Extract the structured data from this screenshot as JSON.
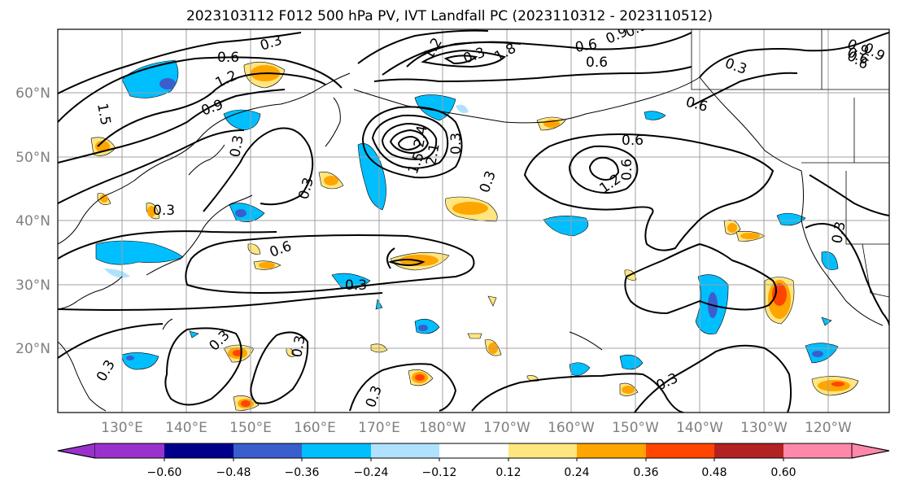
{
  "title": "2023103112 F012 500 hPa PV, IVT Landfall PC (2023110312 - 2023110512)",
  "x_ticks": [
    "130°E",
    "140°E",
    "150°E",
    "160°E",
    "170°E",
    "180°W",
    "170°W",
    "160°W",
    "150°W",
    "140°W",
    "130°W",
    "120°W"
  ],
  "y_ticks": [
    "60°N",
    "50°N",
    "40°N",
    "30°N",
    "20°N"
  ],
  "colorbar": {
    "tick_labels": [
      "−0.60",
      "−0.48",
      "−0.36",
      "−0.24",
      "−0.12",
      "0.12",
      "0.24",
      "0.36",
      "0.48",
      "0.60"
    ],
    "colors": [
      "#9932cc",
      "#00008b",
      "#3a5fcd",
      "#00bfff",
      "#b0e2ff",
      "#ffffff",
      "#ffe680",
      "#ffa500",
      "#ff4500",
      "#b22222",
      "#ff88aa"
    ]
  },
  "contour_labels": [
    "0.3",
    "0.6",
    "1.2",
    "1.5",
    "0.9",
    "0.6",
    "0.9",
    "0.3",
    "0.3",
    "0.6",
    "0.3",
    "0.3",
    "0.6",
    "0.3",
    "0.3",
    "0.6",
    "1.2",
    "0.6",
    "0.3",
    "0.3",
    "0.3",
    "0.3",
    "0.3",
    "0.3",
    "0.3",
    "0.9",
    "0.6",
    "0.3",
    "1.8",
    "2.4",
    "1.2",
    "2.1",
    "0.9",
    "0.6",
    "1.5",
    "0.9",
    "0.6"
  ]
}
